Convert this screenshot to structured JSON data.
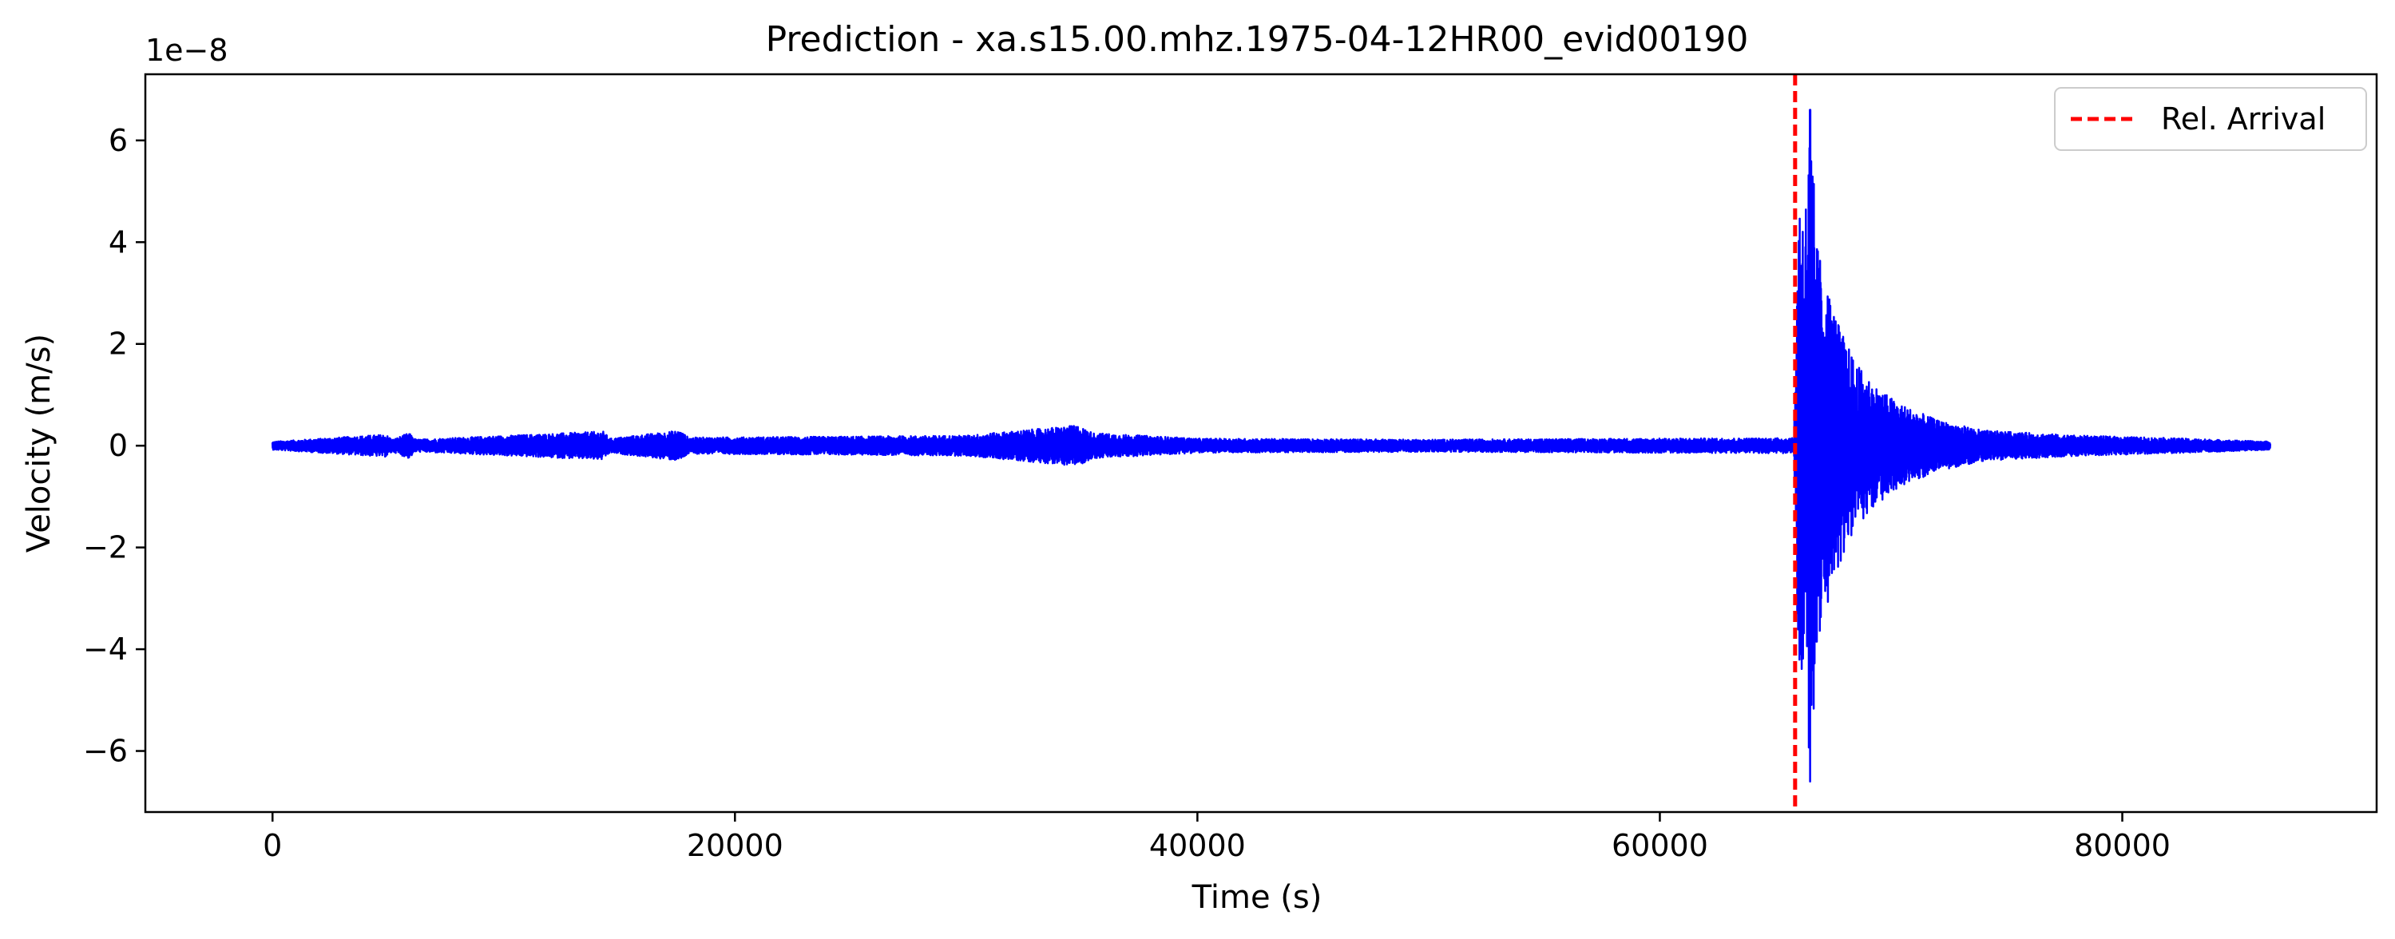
{
  "chart_data": {
    "type": "line",
    "title": "Prediction - xa.s15.00.mhz.1975-04-12HR00_evid00190",
    "xlabel": "Time (s)",
    "ylabel": "Velocity (m/s)",
    "y_offset_label": "1e−8",
    "xlim": [
      -5500,
      91000
    ],
    "ylim": [
      -7.2,
      7.3
    ],
    "y_scale_note": "values in units of 1e-8 m/s",
    "x_ticks": [
      0,
      20000,
      40000,
      60000,
      80000
    ],
    "x_tick_labels": [
      "0",
      "20000",
      "40000",
      "60000",
      "80000"
    ],
    "y_ticks": [
      -6,
      -4,
      -2,
      0,
      2,
      4,
      6
    ],
    "y_tick_labels": [
      "−6",
      "−4",
      "−2",
      "0",
      "2",
      "4",
      "6"
    ],
    "grid": false,
    "legend_position": "top-right",
    "series": [
      {
        "name": "",
        "color": "#0000ff",
        "x_range": [
          0,
          86400
        ],
        "noise_amplitude": 0.1,
        "max_value": 6.6,
        "min_value": -6.6,
        "peak_time": 66500,
        "envelope": [
          [
            0,
            0.08
          ],
          [
            4900,
            0.22
          ],
          [
            5200,
            0.12
          ],
          [
            5900,
            0.25
          ],
          [
            6200,
            0.12
          ],
          [
            14300,
            0.28
          ],
          [
            14600,
            0.14
          ],
          [
            17600,
            0.3
          ],
          [
            18000,
            0.16
          ],
          [
            25000,
            0.18
          ],
          [
            30000,
            0.2
          ],
          [
            34800,
            0.4
          ],
          [
            35500,
            0.25
          ],
          [
            40000,
            0.14
          ],
          [
            50000,
            0.12
          ],
          [
            60000,
            0.14
          ],
          [
            65800,
            0.15
          ],
          [
            66000,
            5.0
          ],
          [
            66300,
            4.8
          ],
          [
            66500,
            6.6
          ],
          [
            66800,
            4.0
          ],
          [
            67200,
            3.2
          ],
          [
            67800,
            2.3
          ],
          [
            68500,
            1.6
          ],
          [
            69500,
            1.1
          ],
          [
            70500,
            0.8
          ],
          [
            72000,
            0.5
          ],
          [
            74000,
            0.3
          ],
          [
            78000,
            0.2
          ],
          [
            82000,
            0.15
          ],
          [
            86400,
            0.08
          ]
        ]
      },
      {
        "name": "Rel. Arrival",
        "color": "#ff0000",
        "style": "dashed",
        "vertical_x": 65850
      }
    ]
  }
}
